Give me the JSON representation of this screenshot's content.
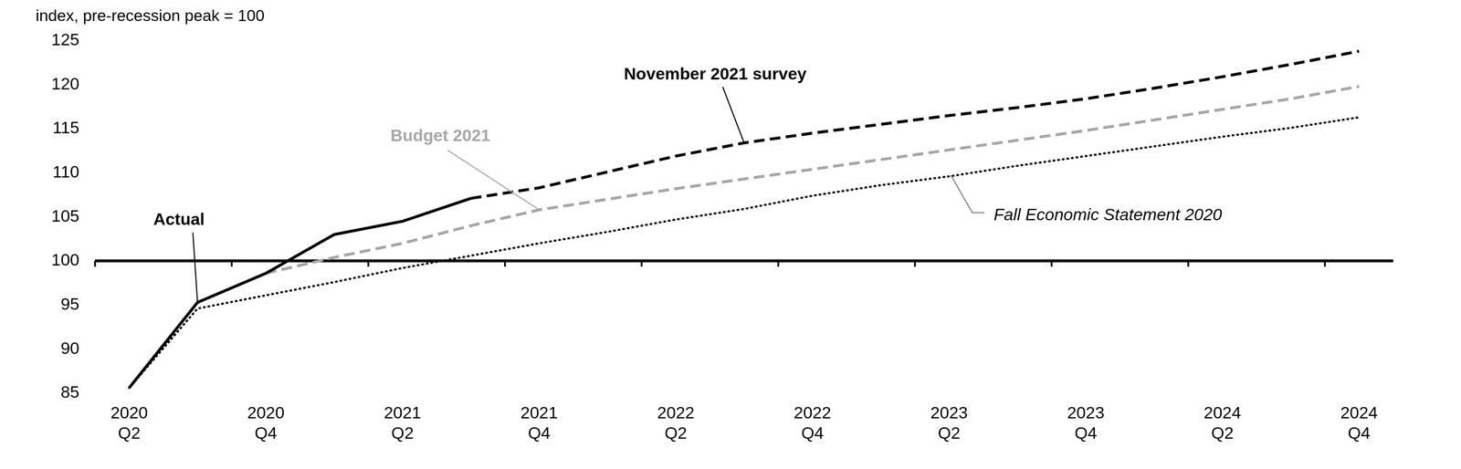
{
  "chart_data": {
    "type": "line",
    "title": "index, pre-recession peak = 100",
    "categories": [
      "2020 Q2",
      null,
      "2020 Q4",
      null,
      "2021 Q2",
      null,
      "2021 Q4",
      null,
      "2022 Q2",
      null,
      "2022 Q4",
      null,
      "2023 Q2",
      null,
      "2023 Q4",
      null,
      "2024 Q2",
      null,
      "2024 Q4"
    ],
    "series": [
      {
        "name": "Actual",
        "color": "#000000",
        "line_style": "solid",
        "values": [
          85.6,
          95.3,
          98.6,
          103.0,
          104.5,
          107.1,
          null,
          null,
          null,
          null,
          null,
          null,
          null,
          null,
          null,
          null,
          null,
          null,
          null
        ]
      },
      {
        "name": "November 2021 survey",
        "color": "#000000",
        "line_style": "dashed",
        "values": [
          null,
          null,
          null,
          null,
          null,
          107.1,
          108.3,
          110.1,
          111.9,
          113.4,
          114.5,
          115.5,
          116.5,
          117.4,
          118.4,
          119.6,
          120.9,
          122.3,
          123.8
        ]
      },
      {
        "name": "Budget 2021",
        "color": "#a6a6a6",
        "line_style": "dashed",
        "values": [
          null,
          null,
          98.6,
          100.4,
          102.0,
          104.0,
          105.8,
          107.0,
          108.2,
          109.3,
          110.4,
          111.5,
          112.6,
          113.7,
          114.8,
          116.0,
          117.2,
          118.4,
          119.8
        ]
      },
      {
        "name": "Fall Economic Statement 2020",
        "color": "#000000",
        "line_style": "dotted",
        "values": [
          85.6,
          94.6,
          96.1,
          97.6,
          99.2,
          100.6,
          102.0,
          103.3,
          104.7,
          105.9,
          107.4,
          108.6,
          109.6,
          110.8,
          111.9,
          113.0,
          114.1,
          115.1,
          116.3
        ]
      }
    ],
    "ylim": [
      85,
      125
    ],
    "yticks": [
      85,
      90,
      95,
      100,
      105,
      110,
      115,
      120,
      125
    ],
    "baseline": 100,
    "grid": false
  }
}
